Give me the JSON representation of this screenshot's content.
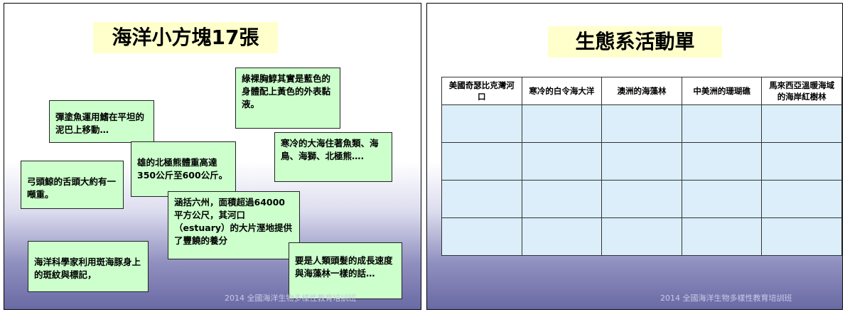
{
  "slides": [
    {
      "title": "海洋小方塊17張",
      "cards": [
        "綠裸胸鯙其實是藍色的身體配上黃色的外表黏液。",
        "彈塗魚運用鰭在平坦的泥巴上移動…",
        "寒冷的大海住著魚類、海鳥、海獅、北極熊….",
        "雄的北極熊體重高達350公斤至600公斤。",
        "弓頭鯨的舌頭大約有一噸重。",
        "涵括六州，面積超過64000平方公尺，其河口（estuary）的大片溼地提供了豐饒的養分",
        "海洋科學家利用斑海豚身上的斑紋與標記，",
        "要是人類頭髮的成長速度與海藻林一樣的話…"
      ],
      "footer": "2014 全國海洋生物多樣性教育培訓班"
    },
    {
      "title": "生態系活動單",
      "table": {
        "header": [
          "美國奇瑟比克灣河口",
          "寒冷的白令海大洋",
          "澳洲的海藻林",
          "中美洲的珊瑚礁",
          "馬來西亞溫暖海域的海岸紅樹林"
        ]
      },
      "footer": "2014 全國海洋生物多樣性教育培訓班"
    }
  ]
}
